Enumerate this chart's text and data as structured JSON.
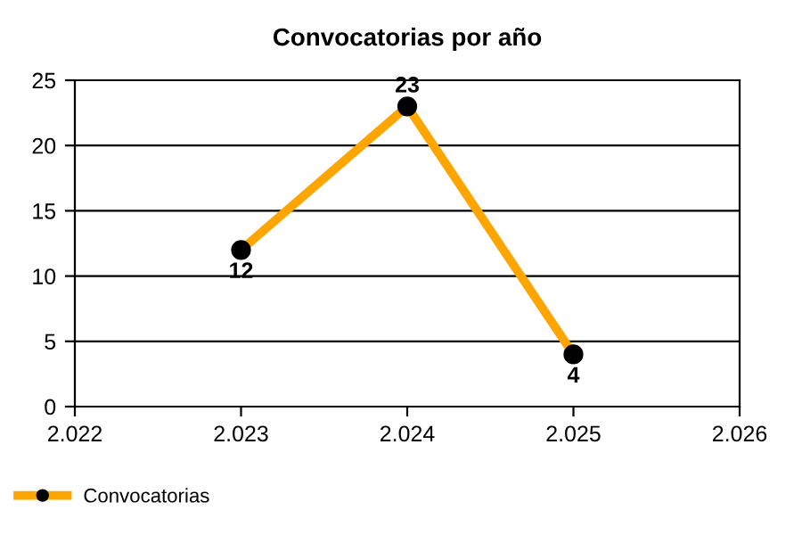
{
  "chart_data": {
    "type": "line",
    "title": "Convocatorias por año",
    "x": [
      2023,
      2024,
      2025
    ],
    "series": [
      {
        "name": "Convocatorias",
        "color": "#ffa500",
        "values": [
          12,
          23,
          4
        ]
      }
    ],
    "xlim": [
      2022,
      2026
    ],
    "xticks": [
      {
        "value": 2022,
        "label": "2.022"
      },
      {
        "value": 2023,
        "label": "2.023"
      },
      {
        "value": 2024,
        "label": "2.024"
      },
      {
        "value": 2025,
        "label": "2.025"
      },
      {
        "value": 2026,
        "label": "2.026"
      }
    ],
    "ylim": [
      0,
      25
    ],
    "yticks": [
      0,
      5,
      10,
      15,
      20,
      25
    ],
    "grid": "y",
    "legend": "bottom left",
    "marker": "circle",
    "line_style": "solid",
    "data_labels": true
  }
}
